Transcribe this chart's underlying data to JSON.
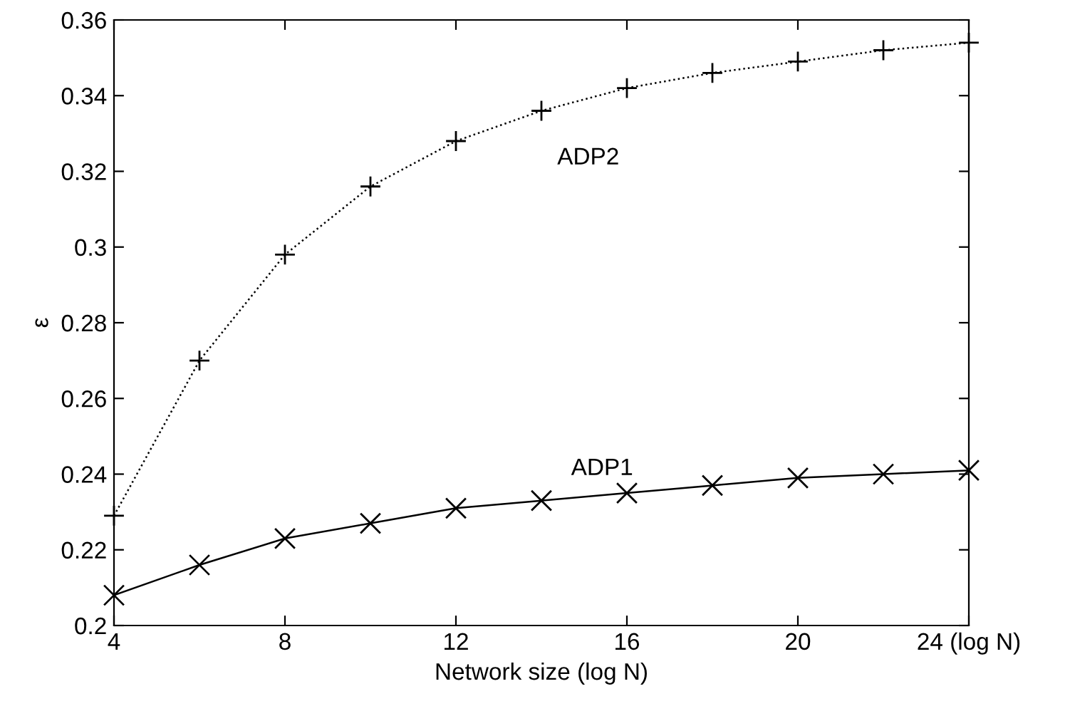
{
  "chart_data": {
    "type": "line",
    "xlabel": "Network size (log N)",
    "ylabel": "ε",
    "x": [
      4,
      6,
      8,
      10,
      12,
      14,
      16,
      18,
      20,
      22,
      24
    ],
    "series": [
      {
        "name": "ADP2",
        "color": "#000000",
        "marker": "plus",
        "line_style": "dotted",
        "values": [
          0.229,
          0.27,
          0.298,
          0.316,
          0.328,
          0.336,
          0.342,
          0.346,
          0.349,
          0.352,
          0.354
        ]
      },
      {
        "name": "ADP1",
        "color": "#000000",
        "marker": "cross",
        "line_style": "solid",
        "values": [
          0.208,
          0.216,
          0.223,
          0.227,
          0.231,
          0.233,
          0.235,
          0.237,
          0.239,
          0.24,
          0.241
        ]
      }
    ],
    "xlim": [
      4,
      24
    ],
    "ylim": [
      0.2,
      0.36
    ],
    "xticks": [
      4,
      8,
      12,
      16,
      20,
      {
        "value": 24,
        "label": "24 (log N)"
      }
    ],
    "yticks": [
      0.2,
      0.22,
      0.24,
      0.26,
      0.28,
      0.3,
      0.32,
      0.34,
      0.36
    ],
    "grid": false,
    "legend": false
  }
}
